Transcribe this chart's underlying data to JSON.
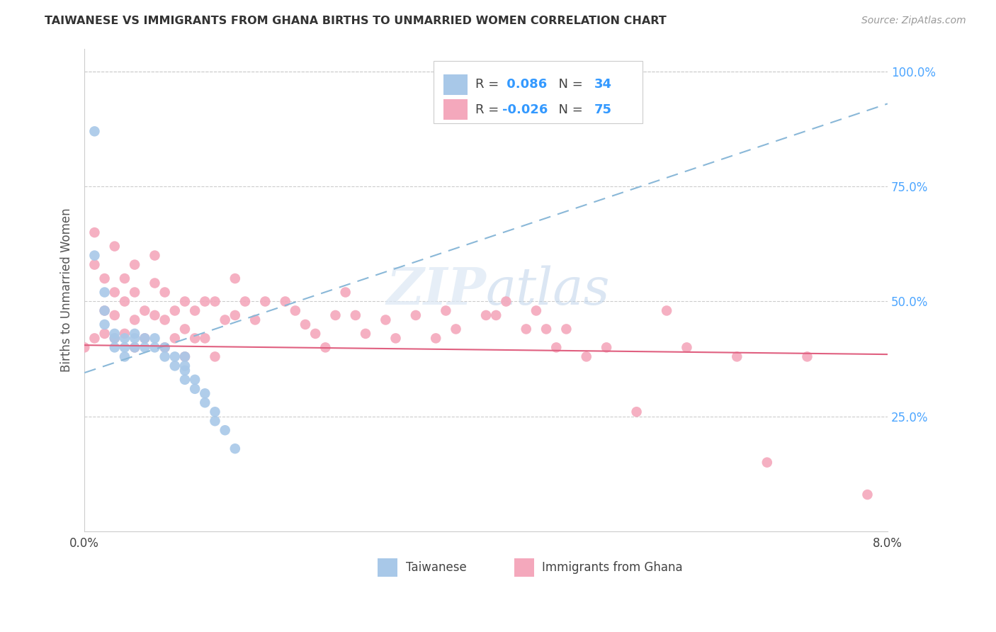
{
  "title": "TAIWANESE VS IMMIGRANTS FROM GHANA BIRTHS TO UNMARRIED WOMEN CORRELATION CHART",
  "source": "Source: ZipAtlas.com",
  "ylabel": "Births to Unmarried Women",
  "xmin": 0.0,
  "xmax": 0.08,
  "ymin": 0.0,
  "ymax": 1.05,
  "R_taiwanese": 0.086,
  "N_taiwanese": 34,
  "R_ghana": -0.026,
  "N_ghana": 75,
  "color_taiwanese": "#a8c8e8",
  "color_ghana": "#f4a8bc",
  "color_trend_taiwanese": "#8ab8d8",
  "color_trend_ghana": "#e06080",
  "trend_tw_y0": 0.345,
  "trend_tw_y1": 0.93,
  "trend_gh_y0": 0.405,
  "trend_gh_y1": 0.385,
  "taiwanese_x": [
    0.001,
    0.001,
    0.002,
    0.002,
    0.002,
    0.003,
    0.003,
    0.003,
    0.004,
    0.004,
    0.004,
    0.005,
    0.005,
    0.005,
    0.006,
    0.006,
    0.007,
    0.007,
    0.008,
    0.008,
    0.009,
    0.009,
    0.01,
    0.01,
    0.01,
    0.01,
    0.011,
    0.011,
    0.012,
    0.012,
    0.013,
    0.013,
    0.014,
    0.015
  ],
  "taiwanese_y": [
    0.87,
    0.6,
    0.52,
    0.48,
    0.45,
    0.43,
    0.42,
    0.4,
    0.42,
    0.4,
    0.38,
    0.43,
    0.42,
    0.4,
    0.42,
    0.4,
    0.42,
    0.4,
    0.4,
    0.38,
    0.38,
    0.36,
    0.38,
    0.36,
    0.35,
    0.33,
    0.33,
    0.31,
    0.3,
    0.28,
    0.26,
    0.24,
    0.22,
    0.18
  ],
  "ghana_x": [
    0.0,
    0.001,
    0.001,
    0.001,
    0.002,
    0.002,
    0.002,
    0.003,
    0.003,
    0.003,
    0.003,
    0.004,
    0.004,
    0.004,
    0.005,
    0.005,
    0.005,
    0.005,
    0.006,
    0.006,
    0.007,
    0.007,
    0.007,
    0.008,
    0.008,
    0.008,
    0.009,
    0.009,
    0.01,
    0.01,
    0.01,
    0.011,
    0.011,
    0.012,
    0.012,
    0.013,
    0.013,
    0.014,
    0.015,
    0.015,
    0.016,
    0.017,
    0.018,
    0.02,
    0.021,
    0.022,
    0.023,
    0.024,
    0.025,
    0.026,
    0.027,
    0.028,
    0.03,
    0.031,
    0.033,
    0.035,
    0.036,
    0.037,
    0.04,
    0.041,
    0.042,
    0.044,
    0.045,
    0.046,
    0.047,
    0.048,
    0.05,
    0.052,
    0.055,
    0.058,
    0.06,
    0.065,
    0.068,
    0.072,
    0.078
  ],
  "ghana_y": [
    0.4,
    0.65,
    0.58,
    0.42,
    0.55,
    0.48,
    0.43,
    0.62,
    0.52,
    0.47,
    0.42,
    0.55,
    0.5,
    0.43,
    0.58,
    0.52,
    0.46,
    0.4,
    0.48,
    0.42,
    0.6,
    0.54,
    0.47,
    0.52,
    0.46,
    0.4,
    0.48,
    0.42,
    0.5,
    0.44,
    0.38,
    0.48,
    0.42,
    0.5,
    0.42,
    0.5,
    0.38,
    0.46,
    0.55,
    0.47,
    0.5,
    0.46,
    0.5,
    0.5,
    0.48,
    0.45,
    0.43,
    0.4,
    0.47,
    0.52,
    0.47,
    0.43,
    0.46,
    0.42,
    0.47,
    0.42,
    0.48,
    0.44,
    0.47,
    0.47,
    0.5,
    0.44,
    0.48,
    0.44,
    0.4,
    0.44,
    0.38,
    0.4,
    0.26,
    0.48,
    0.4,
    0.38,
    0.15,
    0.38,
    0.08
  ],
  "watermark_zip": "ZIP",
  "watermark_atlas": "atlas"
}
